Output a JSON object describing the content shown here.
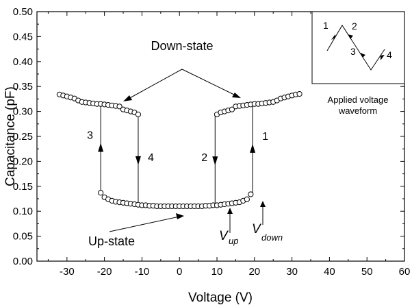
{
  "chart_data": {
    "type": "scatter",
    "xlabel": "Voltage (V)",
    "ylabel": "Capacitance (pF)",
    "xlim": [
      -38,
      60
    ],
    "ylim": [
      0.0,
      0.5
    ],
    "xticks": [
      -30,
      -20,
      -10,
      0,
      10,
      20,
      30,
      40,
      50,
      60
    ],
    "xtick_labels": [
      "-30",
      "-20",
      "-10",
      "0",
      "10",
      "20",
      "30",
      "40",
      "50",
      "60"
    ],
    "yticks": [
      0.0,
      0.05,
      0.1,
      0.15,
      0.2,
      0.25,
      0.3,
      0.35,
      0.4,
      0.45,
      0.5
    ],
    "ytick_labels": [
      "0.00",
      "0.05",
      "0.10",
      "0.15",
      "0.20",
      "0.25",
      "0.30",
      "0.35",
      "0.40",
      "0.45",
      "0.50"
    ],
    "grid": false,
    "marker": "open-circle",
    "series": [
      {
        "values_x": [
          -32,
          -31,
          -30,
          -29,
          -28,
          -27,
          -26,
          -25,
          -24,
          -23,
          -22,
          -21,
          -20,
          -19,
          -18,
          -17,
          -16,
          -15,
          -14,
          -13,
          -12,
          -11
        ],
        "values_y": [
          0.334,
          0.332,
          0.33,
          0.328,
          0.326,
          0.322,
          0.319,
          0.318,
          0.317,
          0.316,
          0.315,
          0.315,
          0.314,
          0.313,
          0.312,
          0.311,
          0.31,
          0.304,
          0.302,
          0.3,
          0.298,
          0.294
        ]
      },
      {
        "values_x": [
          10,
          11,
          12,
          13,
          14,
          15,
          16,
          17,
          18,
          19,
          20,
          21,
          22,
          23,
          24,
          25,
          26,
          27,
          28,
          29,
          30,
          31,
          32
        ],
        "values_y": [
          0.294,
          0.298,
          0.3,
          0.302,
          0.304,
          0.31,
          0.311,
          0.312,
          0.313,
          0.314,
          0.315,
          0.315,
          0.316,
          0.317,
          0.318,
          0.319,
          0.322,
          0.326,
          0.328,
          0.33,
          0.332,
          0.334,
          0.335
        ]
      },
      {
        "values_x": [
          -21,
          -20,
          -19,
          -18,
          -17,
          -16,
          -15,
          -14,
          -13,
          -12,
          -11,
          -10,
          -9,
          -8,
          -7,
          -6,
          -5,
          -4,
          -3,
          -2,
          -1,
          0,
          1,
          2,
          3,
          4,
          5,
          6,
          7,
          8,
          9,
          10,
          11,
          12,
          13,
          14,
          15,
          16,
          17,
          18,
          19
        ],
        "values_y": [
          0.137,
          0.128,
          0.124,
          0.121,
          0.119,
          0.118,
          0.117,
          0.116,
          0.115,
          0.114,
          0.113,
          0.112,
          0.112,
          0.111,
          0.111,
          0.11,
          0.11,
          0.11,
          0.11,
          0.11,
          0.11,
          0.11,
          0.11,
          0.11,
          0.11,
          0.11,
          0.11,
          0.11,
          0.111,
          0.111,
          0.112,
          0.112,
          0.113,
          0.114,
          0.115,
          0.116,
          0.117,
          0.118,
          0.121,
          0.124,
          0.134
        ]
      }
    ],
    "transitions": [
      {
        "label": "1",
        "x": 19.5,
        "y_from": 0.134,
        "y_to": 0.314,
        "direction": "up"
      },
      {
        "label": "2",
        "x": 9.5,
        "y_from": 0.294,
        "y_to": 0.112,
        "direction": "down"
      },
      {
        "label": "3",
        "x": -21,
        "y_from": 0.137,
        "y_to": 0.315,
        "direction": "up"
      },
      {
        "label": "4",
        "x": -11,
        "y_from": 0.294,
        "y_to": 0.113,
        "direction": "down"
      }
    ],
    "annotations": {
      "down_state": "Down-state",
      "up_state": "Up-state",
      "v_up": "V",
      "v_up_sub": "up",
      "v_down": "V",
      "v_down_sub": "down"
    },
    "inset": {
      "caption_line1": "Applied voltage",
      "caption_line2": "waveform",
      "labels": [
        "1",
        "2",
        "3",
        "4"
      ]
    }
  }
}
